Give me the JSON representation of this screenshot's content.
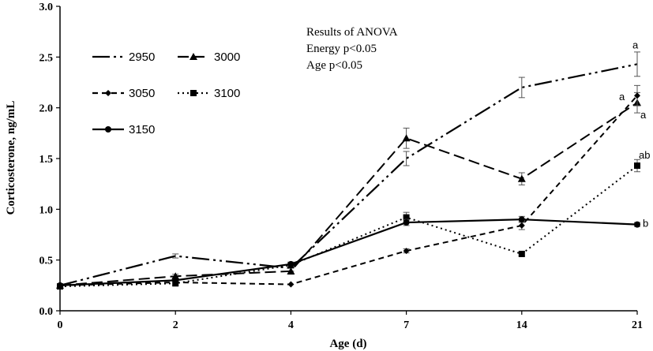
{
  "chart_data": {
    "type": "line",
    "xlabel": "Age (d)",
    "ylabel": "Corticosterone, ng/mL",
    "ylim": [
      0,
      3.0
    ],
    "categories": [
      "0",
      "2",
      "4",
      "7",
      "14",
      "21"
    ],
    "y_ticks": [
      "0.0",
      "0.5",
      "1.0",
      "1.5",
      "2.0",
      "2.5",
      "3.0"
    ],
    "grid": false,
    "legend_position": "top-left",
    "series": [
      {
        "name": "2950",
        "values": [
          0.25,
          0.54,
          0.42,
          1.5,
          2.2,
          2.43
        ],
        "errors": [
          0.01,
          0.02,
          0.03,
          0.07,
          0.1,
          0.12
        ],
        "dash": "22 5 3 5 3 5",
        "marker": "none"
      },
      {
        "name": "3000",
        "values": [
          0.25,
          0.34,
          0.39,
          1.7,
          1.3,
          2.05
        ],
        "errors": [
          0.01,
          0.02,
          0.03,
          0.1,
          0.06,
          0.1
        ],
        "dash": "14 6",
        "marker": "triangle"
      },
      {
        "name": "3050",
        "values": [
          0.25,
          0.28,
          0.26,
          0.59,
          0.84,
          2.12
        ],
        "errors": [
          0.01,
          0.01,
          0.01,
          0.02,
          0.04,
          0.1
        ],
        "dash": "7 5",
        "marker": "diamond"
      },
      {
        "name": "3100",
        "values": [
          0.24,
          0.27,
          0.45,
          0.92,
          0.56,
          1.43
        ],
        "errors": [
          0.01,
          0.02,
          0.02,
          0.05,
          0.02,
          0.06
        ],
        "dash": "2 4",
        "marker": "square"
      },
      {
        "name": "3150",
        "values": [
          0.25,
          0.3,
          0.46,
          0.87,
          0.9,
          0.85
        ],
        "errors": [
          0.01,
          0.01,
          0.02,
          0.03,
          0.03,
          0.02
        ],
        "dash": "",
        "marker": "circle"
      }
    ],
    "annotations": {
      "anova_lines": [
        "Results of ANOVA",
        "Energy p<0.05",
        "Age p<0.05"
      ],
      "significance_letters": [
        {
          "series": "2950",
          "text": "a"
        },
        {
          "series": "3050",
          "text": "a"
        },
        {
          "series": "3000",
          "text": "a"
        },
        {
          "series": "3100",
          "text": "ab"
        },
        {
          "series": "3150",
          "text": "b"
        }
      ]
    }
  }
}
